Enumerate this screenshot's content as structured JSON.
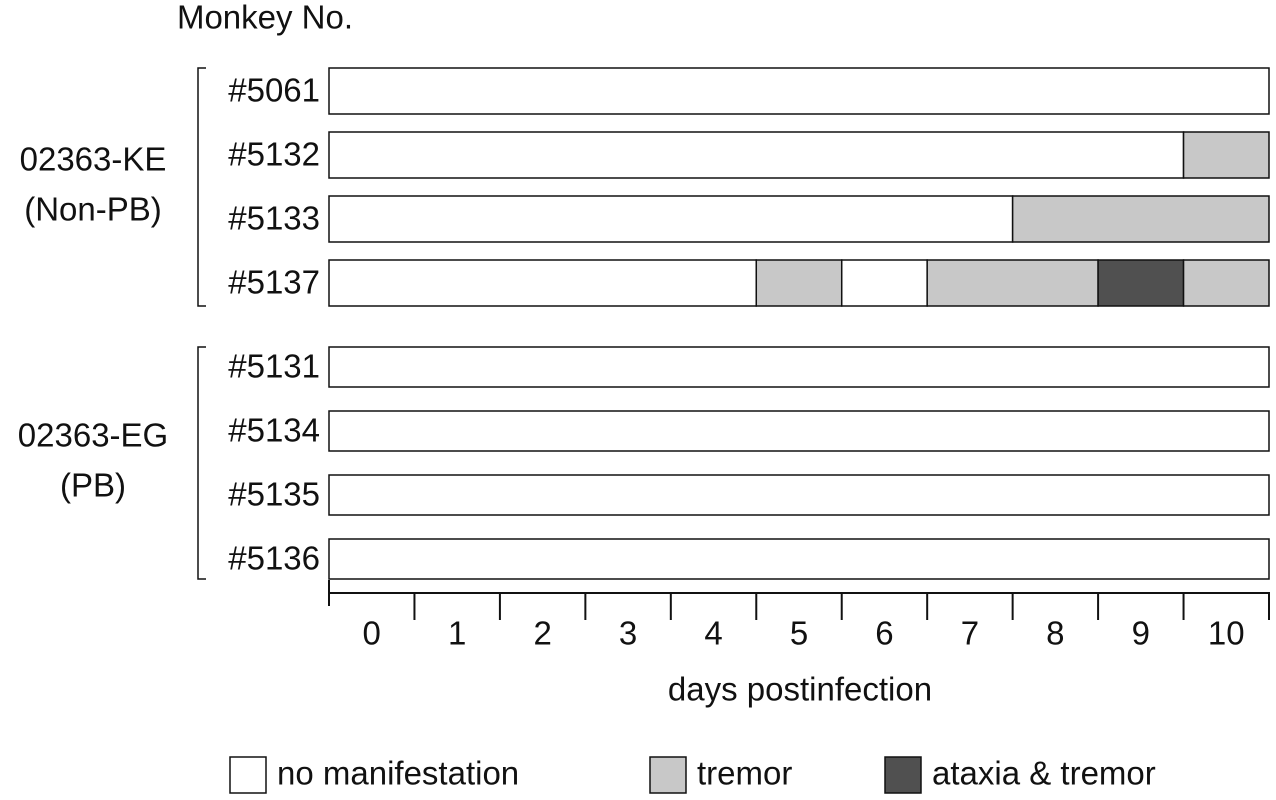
{
  "chart_data": {
    "type": "timeline",
    "title": "Monkey No.",
    "x_label": "days postinfection",
    "xticks": [
      0,
      1,
      2,
      3,
      4,
      5,
      6,
      7,
      8,
      9,
      10
    ],
    "xlim": [
      -0.5,
      10.5
    ],
    "series": [
      {
        "name": "no manifestation",
        "color": "#ffffff"
      },
      {
        "name": "tremor",
        "color": "#c8c8c8"
      },
      {
        "name": "ataxia & tremor",
        "color": "#505050"
      }
    ],
    "groups": [
      {
        "label": [
          "02363-KE",
          "(Non-PB)"
        ],
        "rows": [
          {
            "name": "#5061",
            "segments": [
              {
                "series": 0,
                "first_day": 0,
                "last_day": 10
              }
            ]
          },
          {
            "name": "#5132",
            "segments": [
              {
                "series": 0,
                "first_day": 0,
                "last_day": 9
              },
              {
                "series": 1,
                "first_day": 10,
                "last_day": 10
              }
            ]
          },
          {
            "name": "#5133",
            "segments": [
              {
                "series": 0,
                "first_day": 0,
                "last_day": 7
              },
              {
                "series": 1,
                "first_day": 8,
                "last_day": 10
              }
            ]
          },
          {
            "name": "#5137",
            "segments": [
              {
                "series": 0,
                "first_day": 0,
                "last_day": 4
              },
              {
                "series": 1,
                "first_day": 5,
                "last_day": 5
              },
              {
                "series": 0,
                "first_day": 6,
                "last_day": 6
              },
              {
                "series": 1,
                "first_day": 7,
                "last_day": 8
              },
              {
                "series": 2,
                "first_day": 9,
                "last_day": 9
              },
              {
                "series": 1,
                "first_day": 10,
                "last_day": 10
              }
            ]
          }
        ]
      },
      {
        "label": [
          "02363-EG",
          "(PB)"
        ],
        "rows": [
          {
            "name": "#5131",
            "segments": [
              {
                "series": 0,
                "first_day": 0,
                "last_day": 10
              }
            ]
          },
          {
            "name": "#5134",
            "segments": [
              {
                "series": 0,
                "first_day": 0,
                "last_day": 10
              }
            ]
          },
          {
            "name": "#5135",
            "segments": [
              {
                "series": 0,
                "first_day": 0,
                "last_day": 10
              }
            ]
          },
          {
            "name": "#5136",
            "segments": [
              {
                "series": 0,
                "first_day": 0,
                "last_day": 10
              }
            ]
          }
        ]
      }
    ]
  }
}
